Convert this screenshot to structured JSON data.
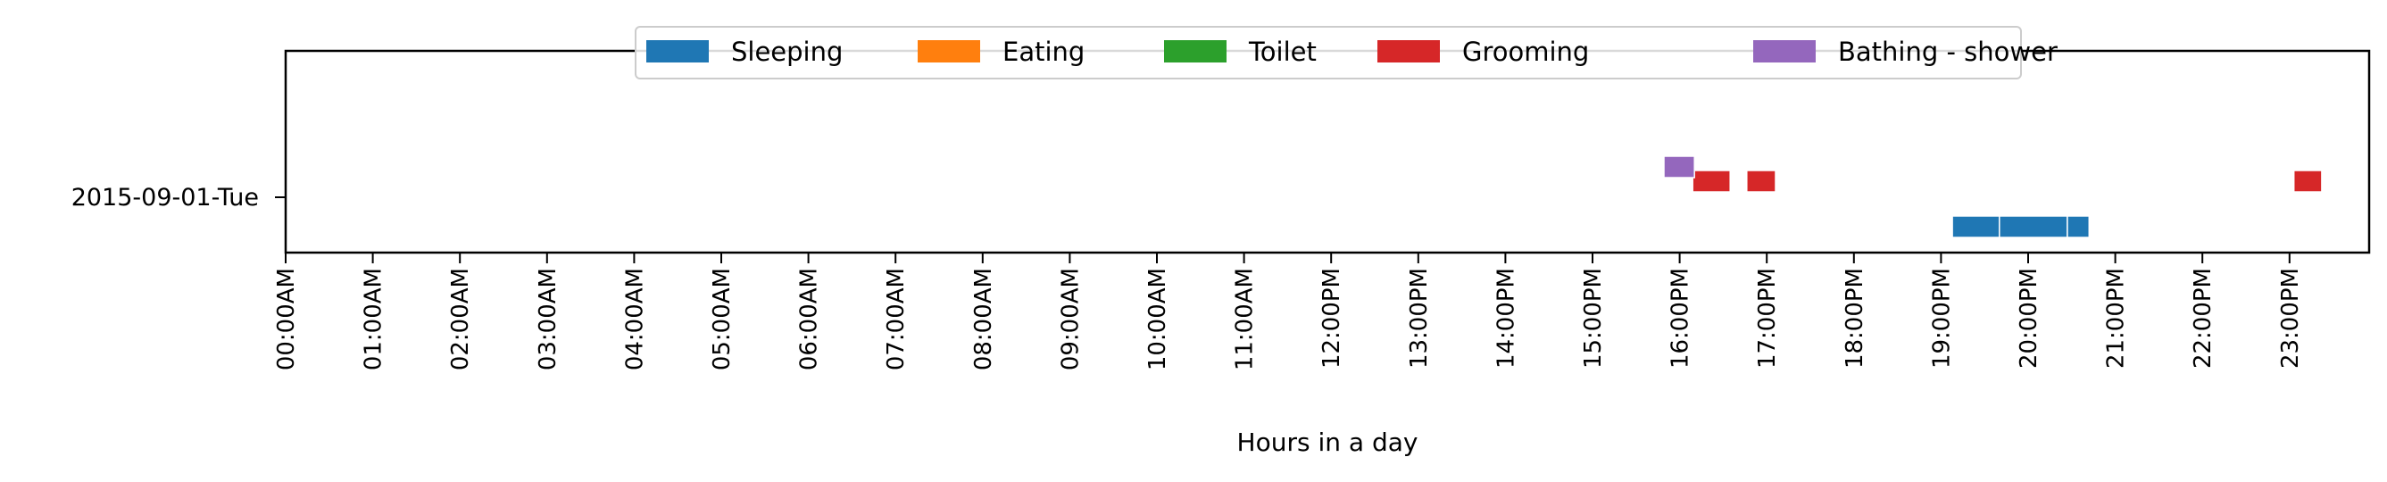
{
  "chart_data": {
    "type": "timeline",
    "xlabel": "Hours in a day",
    "ylabel": "",
    "xlim": [
      0,
      24
    ],
    "x_unit": "hours",
    "ytick_label": "2015-09-01-Tue",
    "x_tick_labels": [
      "00:00AM",
      "01:00AM",
      "02:00AM",
      "03:00AM",
      "04:00AM",
      "05:00AM",
      "06:00AM",
      "07:00AM",
      "08:00AM",
      "09:00AM",
      "10:00AM",
      "11:00AM",
      "12:00PM",
      "13:00PM",
      "14:00PM",
      "15:00PM",
      "16:00PM",
      "17:00PM",
      "18:00PM",
      "19:00PM",
      "20:00PM",
      "21:00PM",
      "22:00PM",
      "23:00PM"
    ],
    "legend_position": "top-center",
    "grid": false,
    "series": [
      {
        "name": "Sleeping",
        "color": "#1f77b4",
        "segments": [
          [
            19.13,
            19.67
          ],
          [
            19.67,
            20.45
          ],
          [
            20.45,
            20.7
          ]
        ]
      },
      {
        "name": "Eating",
        "color": "#ff7f0e",
        "segments": []
      },
      {
        "name": "Toilet",
        "color": "#2ca02c",
        "segments": []
      },
      {
        "name": "Grooming",
        "color": "#d62728",
        "segments": [
          [
            16.15,
            16.58
          ],
          [
            16.77,
            17.1
          ],
          [
            23.05,
            23.37
          ]
        ]
      },
      {
        "name": "Bathing - shower",
        "color": "#9467bd",
        "segments": [
          [
            15.82,
            16.17
          ]
        ]
      }
    ]
  }
}
